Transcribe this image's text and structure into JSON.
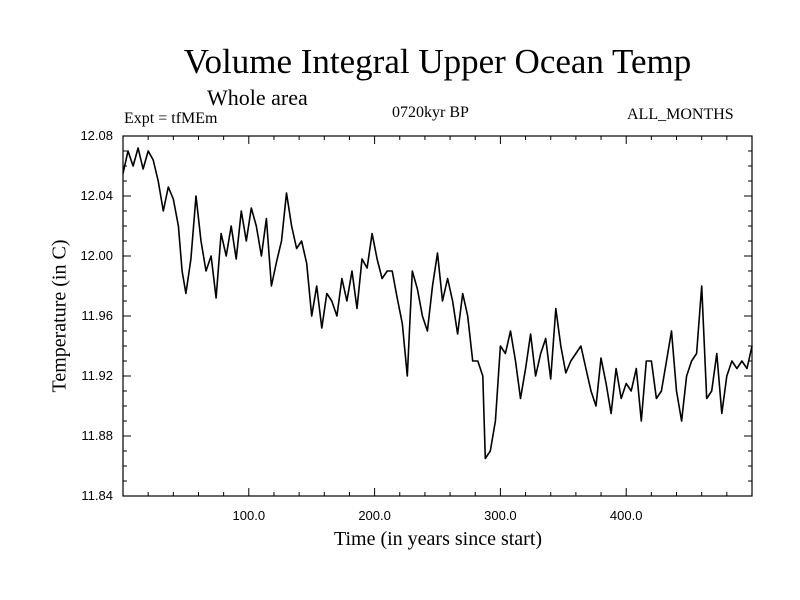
{
  "chart_data": {
    "type": "line",
    "title": "Volume Integral Upper Ocean Temp",
    "subtitle": "Whole area",
    "experiment": "Expt = tfMEm",
    "period": "0720kyr BP",
    "months": "ALL_MONTHS",
    "xlabel": "Time (in years since start)",
    "ylabel": "Temperature (in C)",
    "xlim": [
      0,
      500
    ],
    "ylim": [
      11.84,
      12.08
    ],
    "x_ticks": [
      100,
      200,
      300,
      400
    ],
    "x_tick_labels": [
      "100.0",
      "200.0",
      "300.0",
      "400.0"
    ],
    "y_ticks": [
      11.84,
      11.88,
      11.92,
      11.96,
      12.0,
      12.04,
      12.08
    ],
    "y_tick_labels": [
      "11.84",
      "11.88",
      "11.92",
      "11.96",
      "12.00",
      "12.04",
      "12.08"
    ],
    "grid": false,
    "series": [
      {
        "name": "Temperature",
        "x": [
          0,
          4,
          8,
          12,
          16,
          20,
          24,
          28,
          32,
          36,
          40,
          44,
          47,
          50,
          54,
          58,
          62,
          66,
          70,
          74,
          78,
          82,
          86,
          90,
          94,
          98,
          102,
          106,
          110,
          114,
          118,
          122,
          126,
          130,
          134,
          138,
          142,
          146,
          150,
          154,
          158,
          162,
          166,
          170,
          174,
          178,
          182,
          186,
          190,
          194,
          198,
          202,
          206,
          210,
          214,
          218,
          222,
          226,
          230,
          234,
          238,
          242,
          246,
          250,
          254,
          258,
          262,
          266,
          270,
          274,
          278,
          282,
          286,
          288,
          292,
          296,
          300,
          304,
          308,
          312,
          316,
          320,
          324,
          328,
          332,
          336,
          340,
          344,
          348,
          352,
          356,
          360,
          364,
          368,
          372,
          376,
          380,
          384,
          388,
          392,
          396,
          400,
          404,
          408,
          412,
          416,
          420,
          424,
          428,
          432,
          436,
          440,
          444,
          448,
          452,
          456,
          460,
          464,
          468,
          472,
          476,
          480,
          484,
          488,
          492,
          496,
          500
        ],
        "values": [
          12.055,
          12.07,
          12.06,
          12.072,
          12.058,
          12.07,
          12.064,
          12.05,
          12.03,
          12.046,
          12.038,
          12.02,
          11.99,
          11.975,
          11.998,
          12.04,
          12.01,
          11.99,
          12.0,
          11.972,
          12.015,
          12.0,
          12.02,
          11.998,
          12.03,
          12.01,
          12.032,
          12.02,
          12.0,
          12.025,
          11.98,
          11.996,
          12.01,
          12.042,
          12.02,
          12.005,
          12.01,
          11.995,
          11.96,
          11.98,
          11.952,
          11.975,
          11.97,
          11.96,
          11.985,
          11.97,
          11.99,
          11.965,
          11.998,
          11.992,
          12.015,
          11.998,
          11.985,
          11.99,
          11.99,
          11.972,
          11.955,
          11.92,
          11.99,
          11.978,
          11.96,
          11.95,
          11.98,
          12.002,
          11.97,
          11.985,
          11.97,
          11.948,
          11.975,
          11.96,
          11.93,
          11.93,
          11.92,
          11.865,
          11.87,
          11.89,
          11.94,
          11.935,
          11.95,
          11.93,
          11.905,
          11.925,
          11.948,
          11.92,
          11.935,
          11.945,
          11.918,
          11.965,
          11.94,
          11.922,
          11.93,
          11.935,
          11.94,
          11.925,
          11.91,
          11.9,
          11.932,
          11.915,
          11.895,
          11.925,
          11.905,
          11.915,
          11.91,
          11.925,
          11.89,
          11.93,
          11.93,
          11.905,
          11.91,
          11.93,
          11.95,
          11.91,
          11.89,
          11.92,
          11.93,
          11.935,
          11.98,
          11.905,
          11.91,
          11.935,
          11.895,
          11.92,
          11.93,
          11.925,
          11.93,
          11.925,
          11.94
        ]
      }
    ]
  }
}
